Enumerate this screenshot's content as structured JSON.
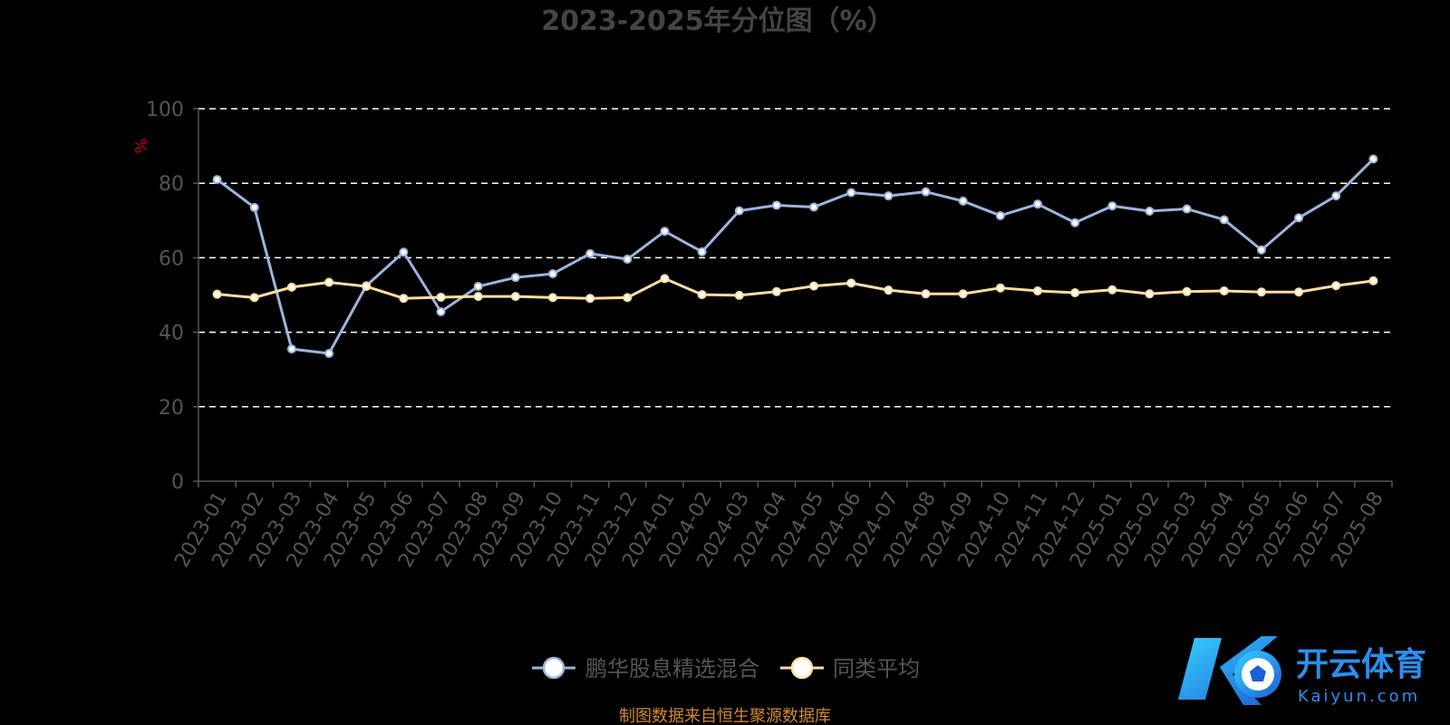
{
  "chart_data": {
    "type": "line",
    "title": "2023-2025年分位图（%）",
    "ylabel": "%",
    "ylim": [
      0,
      100
    ],
    "yticks": [
      0,
      20,
      40,
      60,
      80,
      100
    ],
    "grid": "horizontal-dashed",
    "legend_position": "bottom-center",
    "categories": [
      "2023-01",
      "2023-02",
      "2023-03",
      "2023-04",
      "2023-05",
      "2023-06",
      "2023-07",
      "2023-08",
      "2023-09",
      "2023-10",
      "2023-11",
      "2023-12",
      "2024-01",
      "2024-02",
      "2024-03",
      "2024-04",
      "2024-05",
      "2024-06",
      "2024-07",
      "2024-08",
      "2024-09",
      "2024-10",
      "2024-11",
      "2024-12",
      "2025-01",
      "2025-02",
      "2025-03",
      "2025-04",
      "2025-05",
      "2025-06",
      "2025-07",
      "2025-08"
    ],
    "series": [
      {
        "name": "鹏华股息精选混合",
        "color": "#9bb5de",
        "values": [
          81,
          73.5,
          35.5,
          34.3,
          52.5,
          61.5,
          45.5,
          52.3,
          54.7,
          55.7,
          61.1,
          59.6,
          67.1,
          61.6,
          72.6,
          74.1,
          73.6,
          77.5,
          76.6,
          77.7,
          75.2,
          71.3,
          74.4,
          69.4,
          73.9,
          72.5,
          73.1,
          70.2,
          62.1,
          70.7,
          76.6,
          86.5
        ]
      },
      {
        "name": "同类平均",
        "color": "#ffdea0",
        "values": [
          50.2,
          49.3,
          52.1,
          53.4,
          52.3,
          49.1,
          49.4,
          49.6,
          49.6,
          49.3,
          49.1,
          49.3,
          54.4,
          50.1,
          49.9,
          50.9,
          52.4,
          53.2,
          51.3,
          50.3,
          50.3,
          51.9,
          51.1,
          50.6,
          51.4,
          50.3,
          50.9,
          51.1,
          50.8,
          50.8,
          52.5,
          53.8
        ]
      }
    ]
  },
  "source_note": "制图数据来自恒生聚源数据库",
  "watermark": {
    "brand_cn": "开云体育",
    "brand_en": "Kaiyun.com"
  },
  "colors": {
    "axis": "#555555",
    "grid": "#ffffff",
    "title": "#444444",
    "ylabel": "#cc0000"
  }
}
